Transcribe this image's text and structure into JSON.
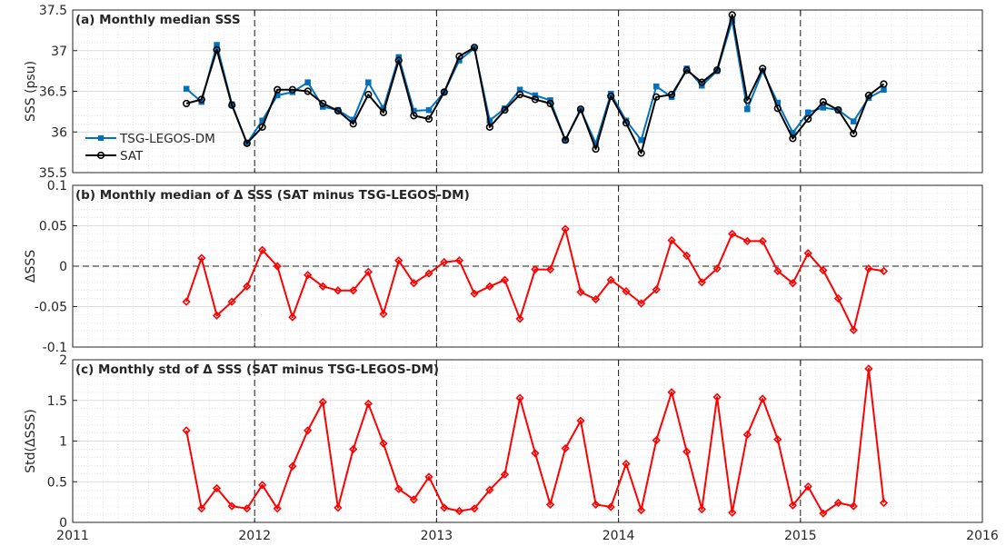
{
  "chart_data": [
    {
      "type": "line",
      "title": "(a) Monthly median SSS",
      "xlabel": "",
      "ylabel": "SSS (psu)",
      "xlim": [
        2011,
        2016
      ],
      "ylim": [
        35.5,
        37.5
      ],
      "xticks": [
        2011,
        2012,
        2013,
        2014,
        2015,
        2016
      ],
      "yticks": [
        35.5,
        36,
        36.5,
        37,
        37.5
      ],
      "ytick_labels": [
        "35.5",
        "36",
        "36.5",
        "37",
        "37.5"
      ],
      "grid": true,
      "legend_position": "lower-left",
      "x": [
        2011.625,
        2011.708,
        2011.792,
        2011.875,
        2011.958,
        2012.042,
        2012.125,
        2012.208,
        2012.292,
        2012.375,
        2012.458,
        2012.542,
        2012.625,
        2012.708,
        2012.792,
        2012.875,
        2012.958,
        2013.042,
        2013.125,
        2013.208,
        2013.292,
        2013.375,
        2013.458,
        2013.542,
        2013.625,
        2013.708,
        2013.792,
        2013.875,
        2013.958,
        2014.042,
        2014.125,
        2014.208,
        2014.292,
        2014.375,
        2014.458,
        2014.542,
        2014.625,
        2014.708,
        2014.792,
        2014.875,
        2014.958,
        2015.042,
        2015.125,
        2015.208,
        2015.292,
        2015.375,
        2015.458
      ],
      "series": [
        {
          "name": "TSG-LEGOS-DM",
          "color": "#0072BD",
          "marker": "square",
          "values": [
            36.53,
            36.37,
            37.07,
            36.34,
            35.86,
            36.14,
            36.45,
            36.49,
            36.61,
            36.31,
            36.27,
            36.15,
            36.61,
            36.29,
            36.92,
            36.26,
            36.27,
            36.49,
            36.88,
            37.03,
            36.14,
            36.29,
            36.52,
            36.45,
            36.39,
            35.9,
            36.27,
            35.86,
            36.47,
            36.14,
            35.9,
            36.56,
            36.43,
            36.78,
            36.57,
            36.75,
            37.37,
            36.28,
            36.75,
            36.36,
            35.99,
            36.24,
            36.3,
            36.27,
            36.13,
            36.42,
            36.52
          ]
        },
        {
          "name": "SAT",
          "color": "#000000",
          "marker": "circle",
          "values": [
            36.35,
            36.4,
            37.01,
            36.33,
            35.86,
            36.06,
            36.52,
            36.52,
            36.5,
            36.35,
            36.26,
            36.1,
            36.46,
            36.24,
            36.88,
            36.2,
            36.16,
            36.49,
            36.93,
            37.04,
            36.06,
            36.27,
            36.46,
            36.4,
            36.35,
            35.9,
            36.28,
            35.79,
            36.44,
            36.11,
            35.74,
            36.43,
            36.46,
            36.76,
            36.61,
            36.76,
            37.44,
            36.39,
            36.78,
            36.29,
            35.92,
            36.16,
            36.37,
            36.27,
            35.98,
            36.45,
            36.59
          ]
        }
      ]
    },
    {
      "type": "line",
      "title": "(b) Monthly median of Δ SSS (SAT minus TSG-LEGOS-DM)",
      "xlabel": "",
      "ylabel": "ΔSSS",
      "xlim": [
        2011,
        2016
      ],
      "ylim": [
        -0.1,
        0.1
      ],
      "xticks": [
        2011,
        2012,
        2013,
        2014,
        2015,
        2016
      ],
      "yticks": [
        -0.1,
        -0.05,
        0,
        0.05,
        0.1
      ],
      "ytick_labels": [
        "-0.1",
        "-0.05",
        "0",
        "0.05",
        "0.1"
      ],
      "grid": true,
      "x": [
        2011.625,
        2011.708,
        2011.792,
        2011.875,
        2011.958,
        2012.042,
        2012.125,
        2012.208,
        2012.292,
        2012.375,
        2012.458,
        2012.542,
        2012.625,
        2012.708,
        2012.792,
        2012.875,
        2012.958,
        2013.042,
        2013.125,
        2013.208,
        2013.292,
        2013.375,
        2013.458,
        2013.542,
        2013.625,
        2013.708,
        2013.792,
        2013.875,
        2013.958,
        2014.042,
        2014.125,
        2014.208,
        2014.292,
        2014.375,
        2014.458,
        2014.542,
        2014.625,
        2014.708,
        2014.792,
        2014.875,
        2014.958,
        2015.042,
        2015.125,
        2015.208,
        2015.292,
        2015.375,
        2015.458
      ],
      "series": [
        {
          "color": "#FF0000",
          "marker": "diamond",
          "values": [
            -0.044,
            0.01,
            -0.061,
            -0.044,
            -0.025,
            0.02,
            0.0,
            -0.063,
            -0.011,
            -0.025,
            -0.03,
            -0.03,
            -0.007,
            -0.059,
            0.007,
            -0.021,
            -0.009,
            0.005,
            0.007,
            -0.034,
            -0.025,
            -0.017,
            -0.065,
            -0.004,
            -0.004,
            0.046,
            -0.032,
            -0.041,
            -0.017,
            -0.031,
            -0.046,
            -0.029,
            0.032,
            0.013,
            -0.02,
            -0.003,
            0.04,
            0.031,
            0.031,
            -0.006,
            -0.021,
            0.016,
            -0.005,
            -0.04,
            -0.079,
            -0.003,
            -0.006
          ]
        }
      ]
    },
    {
      "type": "line",
      "title": "(c) Monthly std of Δ SSS (SAT minus TSG-LEGOS-DM)",
      "xlabel": "",
      "ylabel": "Std(ΔSSS)",
      "xlim": [
        2011,
        2016
      ],
      "ylim": [
        0,
        2
      ],
      "xticks": [
        2011,
        2012,
        2013,
        2014,
        2015,
        2016
      ],
      "xtick_labels": [
        "2011",
        "2012",
        "2013",
        "2014",
        "2015",
        "2016"
      ],
      "yticks": [
        0,
        0.5,
        1,
        1.5,
        2
      ],
      "ytick_labels": [
        "0",
        "0.5",
        "1",
        "1.5",
        "2"
      ],
      "grid": true,
      "x": [
        2011.625,
        2011.708,
        2011.792,
        2011.875,
        2011.958,
        2012.042,
        2012.125,
        2012.208,
        2012.292,
        2012.375,
        2012.458,
        2012.542,
        2012.625,
        2012.708,
        2012.792,
        2012.875,
        2012.958,
        2013.042,
        2013.125,
        2013.208,
        2013.292,
        2013.375,
        2013.458,
        2013.542,
        2013.625,
        2013.708,
        2013.792,
        2013.875,
        2013.958,
        2014.042,
        2014.125,
        2014.208,
        2014.292,
        2014.375,
        2014.458,
        2014.542,
        2014.625,
        2014.708,
        2014.792,
        2014.875,
        2014.958,
        2015.042,
        2015.125,
        2015.208,
        2015.292,
        2015.375,
        2015.458
      ],
      "series": [
        {
          "color": "#FF0000",
          "marker": "diamond",
          "values": [
            1.13,
            0.17,
            0.42,
            0.2,
            0.17,
            0.46,
            0.17,
            0.69,
            1.13,
            1.48,
            0.18,
            0.9,
            1.46,
            0.97,
            0.41,
            0.28,
            0.56,
            0.18,
            0.14,
            0.17,
            0.4,
            0.59,
            1.53,
            0.85,
            0.22,
            0.91,
            1.25,
            0.22,
            0.19,
            0.72,
            0.15,
            1.01,
            1.6,
            0.87,
            0.16,
            1.54,
            0.12,
            1.08,
            1.52,
            1.02,
            0.21,
            0.44,
            0.11,
            0.24,
            0.2,
            1.89,
            0.24
          ]
        }
      ]
    }
  ]
}
